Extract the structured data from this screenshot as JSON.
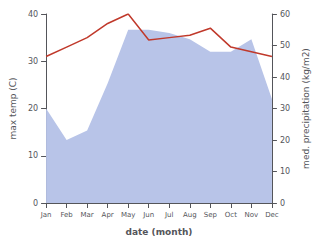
{
  "chart_data": {
    "type": "line",
    "categories": [
      "Jan",
      "Feb",
      "Mar",
      "Apr",
      "May",
      "Jun",
      "Jul",
      "Aug",
      "Sep",
      "Oct",
      "Nov",
      "Dec"
    ],
    "xlabel": "date (month)",
    "ylabel": "max temp (C)",
    "y2label": "med. precipitation (kg/m2)",
    "ylim": [
      0,
      40
    ],
    "yticks": [
      0,
      10,
      20,
      30,
      40
    ],
    "y2lim": [
      0,
      60
    ],
    "y2ticks": [
      0,
      10,
      20,
      30,
      40,
      50,
      60
    ],
    "grid": false,
    "series": [
      {
        "type": "area",
        "axis": "y2",
        "color": "#b8c4e8",
        "values": [
          30.0,
          20.0,
          23.0,
          38.0,
          55.0,
          55.0,
          54.0,
          52.0,
          48.0,
          48.0,
          52.0,
          33.0
        ]
      },
      {
        "type": "line",
        "color": "#c0392b",
        "values": [
          31.0,
          33.0,
          35.0,
          38.0,
          40.0,
          34.5,
          35.0,
          35.5,
          37.0,
          33.0,
          32.0,
          31.0
        ]
      }
    ]
  }
}
